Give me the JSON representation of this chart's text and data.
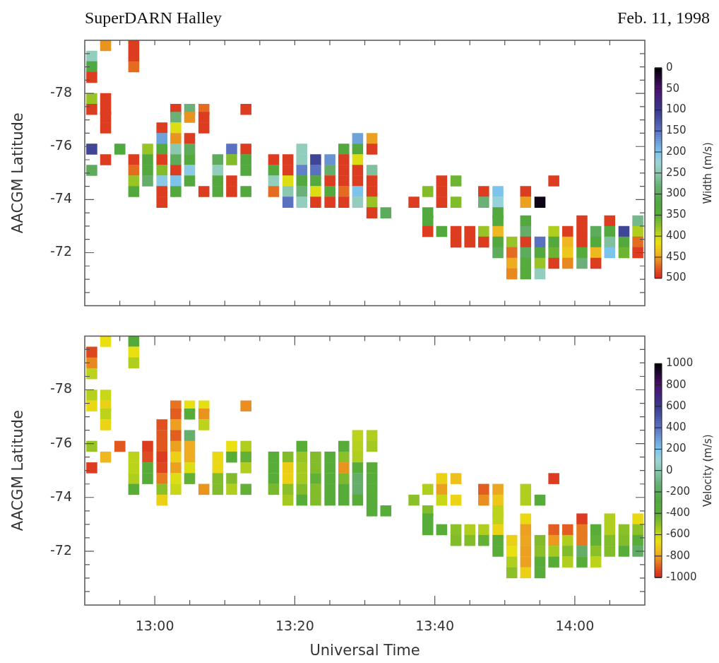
{
  "chart_data": [
    {
      "type": "scatter",
      "title": "SuperDARN Halley",
      "annotations": [
        "Feb. 11, 1998"
      ],
      "ylabel": "AACGM Latitude",
      "clabel": "Width (m/s)",
      "marker": "square",
      "tick_labels": "y",
      "xlim": [
        12.8333,
        14.1667
      ],
      "xticks": [
        {
          "value": 12.9167,
          "label": null
        },
        {
          "value": 13,
          "label": null
        },
        {
          "value": 13.0833,
          "label": null
        },
        {
          "value": 13.1667,
          "label": null
        },
        {
          "value": 13.25,
          "label": null
        },
        {
          "value": 13.3333,
          "label": null
        },
        {
          "value": 13.4167,
          "label": null
        },
        {
          "value": 13.5,
          "label": null
        },
        {
          "value": 13.5833,
          "label": null
        },
        {
          "value": 13.6667,
          "label": null
        },
        {
          "value": 13.75,
          "label": null
        },
        {
          "value": 13.8333,
          "label": null
        },
        {
          "value": 13.9167,
          "label": null
        },
        {
          "value": 14,
          "label": null
        },
        {
          "value": 14.0833,
          "label": null
        }
      ],
      "ylim": [
        -70,
        -80
      ],
      "yticks": [
        {
          "value": -79.5,
          "label": null
        },
        {
          "value": -79,
          "label": null
        },
        {
          "value": -78.5,
          "label": null
        },
        -78,
        {
          "value": -77.5,
          "label": null
        },
        {
          "value": -77,
          "label": null
        },
        {
          "value": -76.5,
          "label": null
        },
        -76,
        {
          "value": -75.5,
          "label": null
        },
        {
          "value": -75,
          "label": null
        },
        {
          "value": -74.5,
          "label": null
        },
        -74,
        {
          "value": -73.5,
          "label": null
        },
        {
          "value": -73,
          "label": null
        },
        {
          "value": -72.5,
          "label": null
        },
        -72,
        {
          "value": -71.5,
          "label": null
        },
        {
          "value": -71,
          "label": null
        },
        {
          "value": -70.5,
          "label": null
        }
      ],
      "clim": [
        0,
        500
      ],
      "cticks": [
        0,
        50,
        100,
        150,
        200,
        250,
        300,
        350,
        400,
        450,
        500
      ],
      "x": [
        12.883,
        12.95,
        12.85,
        12.95,
        12.85,
        12.95,
        12.85,
        12.85,
        12.883,
        12.85,
        12.883,
        13.05,
        13.083,
        13.117,
        13.217,
        12.883,
        13.05,
        13.083,
        13.117,
        12.883,
        13.017,
        13.05,
        13.117,
        13.017,
        13.05,
        13.083,
        13.483,
        13.517,
        12.85,
        12.917,
        12.983,
        13.017,
        13.05,
        13.083,
        13.183,
        13.217,
        13.35,
        13.45,
        13.483,
        13.517,
        12.883,
        12.95,
        12.983,
        13.017,
        13.05,
        13.083,
        13.15,
        13.183,
        13.217,
        13.283,
        13.317,
        13.35,
        13.383,
        13.417,
        13.45,
        13.483,
        12.85,
        12.95,
        12.983,
        13.017,
        13.05,
        13.083,
        13.15,
        13.217,
        13.283,
        13.317,
        13.35,
        13.383,
        13.417,
        13.45,
        13.483,
        13.517,
        12.95,
        12.983,
        13.017,
        13.05,
        13.083,
        13.15,
        13.183,
        13.283,
        13.317,
        13.35,
        13.383,
        13.417,
        13.45,
        13.483,
        13.517,
        13.683,
        13.717,
        13.95,
        12.95,
        13.017,
        13.05,
        13.117,
        13.15,
        13.183,
        13.217,
        13.283,
        13.317,
        13.35,
        13.383,
        13.417,
        13.45,
        13.483,
        13.517,
        13.65,
        13.683,
        13.783,
        13.817,
        13.883,
        13.017,
        13.317,
        13.35,
        13.383,
        13.417,
        13.45,
        13.483,
        13.517,
        13.617,
        13.683,
        13.717,
        13.783,
        13.817,
        13.883,
        13.917,
        13.517,
        13.55,
        13.65,
        13.817,
        13.65,
        13.817,
        13.883,
        14.017,
        14.083,
        14.15,
        13.65,
        13.683,
        13.717,
        13.75,
        13.783,
        13.817,
        13.883,
        13.95,
        13.983,
        14.017,
        14.05,
        14.083,
        14.117,
        14.15,
        13.717,
        13.75,
        13.783,
        13.817,
        13.85,
        13.883,
        13.917,
        13.95,
        13.983,
        14.017,
        14.05,
        14.083,
        14.117,
        14.15,
        13.817,
        13.85,
        13.883,
        13.917,
        13.95,
        13.983,
        14.017,
        14.05,
        14.083,
        14.117,
        14.15,
        13.85,
        13.883,
        13.917,
        13.95,
        13.983,
        14.017,
        14.05,
        13.85,
        13.883,
        13.917
      ],
      "values": [
        -79.8,
        -79.8,
        -79.4,
        -79.4,
        -79,
        -79,
        -78.6,
        -77.8,
        -77.8,
        -77.4,
        -77.4,
        -77.4,
        -77.4,
        -77.4,
        -77.4,
        -77.1,
        -77.1,
        -77.1,
        -77.1,
        -76.7,
        -76.7,
        -76.7,
        -76.7,
        -76.3,
        -76.3,
        -76.3,
        -76.3,
        -76.3,
        -75.9,
        -75.9,
        -75.9,
        -75.9,
        -75.9,
        -75.9,
        -75.9,
        -75.9,
        -75.9,
        -75.9,
        -75.9,
        -75.9,
        -75.5,
        -75.5,
        -75.5,
        -75.5,
        -75.5,
        -75.5,
        -75.5,
        -75.5,
        -75.5,
        -75.5,
        -75.5,
        -75.5,
        -75.5,
        -75.5,
        -75.5,
        -75.5,
        -75.1,
        -75.1,
        -75.1,
        -75.1,
        -75.1,
        -75.1,
        -75.1,
        -75.1,
        -75.1,
        -75.1,
        -75.1,
        -75.1,
        -75.1,
        -75.1,
        -75.1,
        -75.1,
        -74.7,
        -74.7,
        -74.7,
        -74.7,
        -74.7,
        -74.7,
        -74.7,
        -74.7,
        -74.7,
        -74.7,
        -74.7,
        -74.7,
        -74.7,
        -74.7,
        -74.7,
        -74.7,
        -74.7,
        -74.7,
        -74.3,
        -74.3,
        -74.3,
        -74.3,
        -74.3,
        -74.3,
        -74.3,
        -74.3,
        -74.3,
        -74.3,
        -74.3,
        -74.3,
        -74.3,
        -74.3,
        -74.3,
        -74.3,
        -74.3,
        -74.3,
        -74.3,
        -74.3,
        -73.9,
        -73.9,
        -73.9,
        -73.9,
        -73.9,
        -73.9,
        -73.9,
        -73.9,
        -73.9,
        -73.9,
        -73.9,
        -73.9,
        -73.9,
        -73.9,
        -73.9,
        -73.5,
        -73.5,
        -73.5,
        -73.5,
        -73.2,
        -73.2,
        -73.2,
        -73.2,
        -73.2,
        -73.2,
        -72.8,
        -72.8,
        -72.8,
        -72.8,
        -72.8,
        -72.8,
        -72.8,
        -72.8,
        -72.8,
        -72.8,
        -72.8,
        -72.8,
        -72.8,
        -72.8,
        -72.4,
        -72.4,
        -72.4,
        -72.4,
        -72.4,
        -72.4,
        -72.4,
        -72.4,
        -72.4,
        -72.4,
        -72.4,
        -72.4,
        -72.4,
        -72.4,
        -72,
        -72,
        -72,
        -72,
        -72,
        -72,
        -72,
        -72,
        -72,
        -72,
        -72,
        -71.6,
        -71.6,
        -71.6,
        -71.6,
        -71.6,
        -71.6,
        -71.6,
        -71.2,
        -71.2,
        -71.2
      ],
      "cvalues": [
        455,
        490,
        240,
        490,
        320,
        470,
        490,
        380,
        490,
        490,
        490,
        490,
        280,
        470,
        490,
        490,
        280,
        455,
        490,
        490,
        490,
        410,
        490,
        180,
        455,
        490,
        180,
        450,
        110,
        320,
        380,
        330,
        250,
        300,
        150,
        490,
        240,
        330,
        330,
        490,
        490,
        490,
        330,
        490,
        300,
        330,
        300,
        370,
        330,
        490,
        490,
        240,
        110,
        170,
        490,
        410,
        300,
        470,
        330,
        370,
        490,
        210,
        240,
        330,
        330,
        490,
        160,
        150,
        290,
        490,
        490,
        260,
        380,
        290,
        210,
        200,
        330,
        330,
        490,
        240,
        410,
        330,
        330,
        490,
        490,
        490,
        490,
        490,
        360,
        490,
        330,
        490,
        330,
        490,
        330,
        490,
        330,
        470,
        250,
        280,
        410,
        330,
        470,
        200,
        490,
        370,
        490,
        490,
        200,
        490,
        490,
        150,
        240,
        490,
        490,
        490,
        240,
        380,
        490,
        490,
        370,
        280,
        220,
        450,
        10,
        490,
        300,
        330,
        330,
        330,
        330,
        330,
        490,
        490,
        270,
        490,
        330,
        490,
        490,
        380,
        440,
        290,
        390,
        490,
        490,
        300,
        330,
        110,
        390,
        490,
        490,
        490,
        330,
        380,
        490,
        150,
        330,
        440,
        490,
        330,
        260,
        330,
        470,
        300,
        470,
        300,
        330,
        360,
        430,
        340,
        440,
        200,
        360,
        490,
        445,
        340,
        380,
        490,
        460,
        280,
        490,
        460,
        340,
        240
      ]
    },
    {
      "type": "scatter",
      "xlabel": "Universal Time",
      "ylabel": "AACGM Latitude",
      "clabel": "Velocity (m/s)",
      "marker": "square",
      "xlim": [
        12.8333,
        14.1667
      ],
      "xticks": [
        {
          "value": 12.9167,
          "label": null
        },
        {
          "value": 13,
          "label": "13:00"
        },
        {
          "value": 13.0833,
          "label": null
        },
        {
          "value": 13.1667,
          "label": null
        },
        {
          "value": 13.25,
          "label": null
        },
        {
          "value": 13.3333,
          "label": "13:20"
        },
        {
          "value": 13.4167,
          "label": null
        },
        {
          "value": 13.5,
          "label": null
        },
        {
          "value": 13.5833,
          "label": null
        },
        {
          "value": 13.6667,
          "label": "13:40"
        },
        {
          "value": 13.75,
          "label": null
        },
        {
          "value": 13.8333,
          "label": null
        },
        {
          "value": 13.9167,
          "label": null
        },
        {
          "value": 14,
          "label": "14:00"
        },
        {
          "value": 14.0833,
          "label": null
        }
      ],
      "ylim": [
        -70,
        -80
      ],
      "yticks": [
        {
          "value": -79.5,
          "label": null
        },
        {
          "value": -79,
          "label": null
        },
        {
          "value": -78.5,
          "label": null
        },
        -78,
        {
          "value": -77.5,
          "label": null
        },
        {
          "value": -77,
          "label": null
        },
        {
          "value": -76.5,
          "label": null
        },
        -76,
        {
          "value": -75.5,
          "label": null
        },
        {
          "value": -75,
          "label": null
        },
        {
          "value": -74.5,
          "label": null
        },
        -74,
        {
          "value": -73.5,
          "label": null
        },
        {
          "value": -73,
          "label": null
        },
        {
          "value": -72.5,
          "label": null
        },
        -72,
        {
          "value": -71.5,
          "label": null
        },
        {
          "value": -71,
          "label": null
        },
        {
          "value": -70.5,
          "label": null
        }
      ],
      "clim": [
        1000,
        -1000
      ],
      "cticks": [
        1000,
        800,
        600,
        400,
        200,
        0,
        -200,
        -400,
        -600,
        -800,
        -1000
      ],
      "x": [
        12.883,
        12.95,
        12.85,
        12.95,
        12.85,
        12.95,
        12.85,
        12.85,
        12.883,
        12.85,
        12.883,
        13.05,
        13.083,
        13.117,
        13.217,
        12.883,
        13.05,
        13.083,
        13.117,
        12.883,
        13.017,
        13.05,
        13.117,
        13.017,
        13.05,
        13.083,
        13.483,
        13.517,
        12.85,
        12.917,
        12.983,
        13.017,
        13.05,
        13.083,
        13.183,
        13.217,
        13.35,
        13.45,
        13.483,
        13.517,
        12.883,
        12.95,
        12.983,
        13.017,
        13.05,
        13.083,
        13.15,
        13.183,
        13.217,
        13.283,
        13.317,
        13.35,
        13.383,
        13.417,
        13.45,
        13.483,
        12.85,
        12.95,
        12.983,
        13.017,
        13.05,
        13.083,
        13.15,
        13.217,
        13.283,
        13.317,
        13.35,
        13.383,
        13.417,
        13.45,
        13.483,
        13.517,
        12.95,
        12.983,
        13.017,
        13.05,
        13.083,
        13.15,
        13.183,
        13.283,
        13.317,
        13.35,
        13.383,
        13.417,
        13.45,
        13.483,
        13.517,
        13.683,
        13.717,
        13.95,
        12.95,
        13.017,
        13.05,
        13.117,
        13.15,
        13.183,
        13.217,
        13.283,
        13.317,
        13.35,
        13.383,
        13.417,
        13.45,
        13.483,
        13.517,
        13.65,
        13.683,
        13.783,
        13.817,
        13.883,
        13.017,
        13.317,
        13.35,
        13.383,
        13.417,
        13.45,
        13.483,
        13.517,
        13.617,
        13.683,
        13.717,
        13.783,
        13.817,
        13.883,
        13.917,
        13.517,
        13.55,
        13.65,
        13.817,
        13.65,
        13.817,
        13.883,
        14.017,
        14.083,
        14.15,
        13.65,
        13.683,
        13.717,
        13.75,
        13.783,
        13.817,
        13.883,
        13.95,
        13.983,
        14.017,
        14.05,
        14.083,
        14.117,
        14.15,
        13.717,
        13.75,
        13.783,
        13.817,
        13.85,
        13.883,
        13.917,
        13.95,
        13.983,
        14.017,
        14.05,
        14.083,
        14.117,
        14.15,
        13.817,
        13.85,
        13.883,
        13.917,
        13.95,
        13.983,
        14.017,
        14.05,
        14.083,
        14.117,
        14.15,
        13.85,
        13.883,
        13.917,
        13.95,
        13.983,
        14.017,
        14.05,
        13.85,
        13.883,
        13.917
      ],
      "values": [
        -79.8,
        -79.8,
        -79.4,
        -79.4,
        -79,
        -79,
        -78.6,
        -77.8,
        -77.8,
        -77.4,
        -77.4,
        -77.4,
        -77.4,
        -77.4,
        -77.4,
        -77.1,
        -77.1,
        -77.1,
        -77.1,
        -76.7,
        -76.7,
        -76.7,
        -76.7,
        -76.3,
        -76.3,
        -76.3,
        -76.3,
        -76.3,
        -75.9,
        -75.9,
        -75.9,
        -75.9,
        -75.9,
        -75.9,
        -75.9,
        -75.9,
        -75.9,
        -75.9,
        -75.9,
        -75.9,
        -75.5,
        -75.5,
        -75.5,
        -75.5,
        -75.5,
        -75.5,
        -75.5,
        -75.5,
        -75.5,
        -75.5,
        -75.5,
        -75.5,
        -75.5,
        -75.5,
        -75.5,
        -75.5,
        -75.1,
        -75.1,
        -75.1,
        -75.1,
        -75.1,
        -75.1,
        -75.1,
        -75.1,
        -75.1,
        -75.1,
        -75.1,
        -75.1,
        -75.1,
        -75.1,
        -75.1,
        -75.1,
        -74.7,
        -74.7,
        -74.7,
        -74.7,
        -74.7,
        -74.7,
        -74.7,
        -74.7,
        -74.7,
        -74.7,
        -74.7,
        -74.7,
        -74.7,
        -74.7,
        -74.7,
        -74.7,
        -74.7,
        -74.7,
        -74.3,
        -74.3,
        -74.3,
        -74.3,
        -74.3,
        -74.3,
        -74.3,
        -74.3,
        -74.3,
        -74.3,
        -74.3,
        -74.3,
        -74.3,
        -74.3,
        -74.3,
        -74.3,
        -74.3,
        -74.3,
        -74.3,
        -74.3,
        -73.9,
        -73.9,
        -73.9,
        -73.9,
        -73.9,
        -73.9,
        -73.9,
        -73.9,
        -73.9,
        -73.9,
        -73.9,
        -73.9,
        -73.9,
        -73.9,
        -73.9,
        -73.5,
        -73.5,
        -73.5,
        -73.5,
        -73.2,
        -73.2,
        -73.2,
        -73.2,
        -73.2,
        -73.2,
        -72.8,
        -72.8,
        -72.8,
        -72.8,
        -72.8,
        -72.8,
        -72.8,
        -72.8,
        -72.8,
        -72.8,
        -72.8,
        -72.8,
        -72.8,
        -72.8,
        -72.4,
        -72.4,
        -72.4,
        -72.4,
        -72.4,
        -72.4,
        -72.4,
        -72.4,
        -72.4,
        -72.4,
        -72.4,
        -72.4,
        -72.4,
        -72.4,
        -72,
        -72,
        -72,
        -72,
        -72,
        -72,
        -72,
        -72,
        -72,
        -72,
        -72,
        -71.6,
        -71.6,
        -71.6,
        -71.6,
        -71.6,
        -71.6,
        -71.6,
        -71.2,
        -71.2,
        -71.2
      ],
      "cvalues": [
        -660,
        -350,
        -940,
        -660,
        -840,
        -560,
        -580,
        -570,
        -600,
        -680,
        -700,
        -870,
        -660,
        -650,
        -830,
        -580,
        -900,
        -380,
        -820,
        -690,
        -920,
        -800,
        -580,
        -910,
        -900,
        -150,
        -580,
        -560,
        -520,
        -910,
        -960,
        -910,
        -800,
        -780,
        -660,
        -560,
        -400,
        -380,
        -570,
        -540,
        -760,
        -580,
        -930,
        -960,
        -700,
        -780,
        -680,
        -400,
        -420,
        -400,
        -480,
        -520,
        -480,
        -380,
        -500,
        -560,
        -960,
        -580,
        -400,
        -940,
        -800,
        -640,
        -680,
        -560,
        -400,
        -710,
        -540,
        -480,
        -380,
        -820,
        -400,
        -400,
        -560,
        -380,
        -860,
        -640,
        -420,
        -480,
        -480,
        -400,
        -700,
        -540,
        -420,
        -380,
        -470,
        -160,
        -400,
        -700,
        -740,
        -960,
        -400,
        -500,
        -600,
        -820,
        -480,
        -560,
        -420,
        -460,
        -500,
        -480,
        -480,
        -390,
        -380,
        -160,
        -400,
        -560,
        -800,
        -900,
        -790,
        -560,
        -700,
        -540,
        -400,
        -480,
        -380,
        -380,
        -380,
        -380,
        -500,
        -600,
        -690,
        -830,
        -720,
        -560,
        -380,
        -380,
        -400,
        -480,
        -580,
        -400,
        -580,
        -680,
        -960,
        -560,
        -680,
        -400,
        -400,
        -500,
        -560,
        -560,
        -690,
        -800,
        -900,
        -900,
        -860,
        -400,
        -560,
        -500,
        -500,
        -480,
        -480,
        -420,
        -400,
        -700,
        -790,
        -480,
        -810,
        -560,
        -860,
        -420,
        -480,
        -480,
        -400,
        -400,
        -660,
        -800,
        -500,
        -540,
        -480,
        -160,
        -500,
        -480,
        -400,
        -180,
        -560,
        -800,
        -400,
        -400,
        -560,
        -400,
        -580,
        -500,
        -700,
        -400
      ]
    }
  ]
}
